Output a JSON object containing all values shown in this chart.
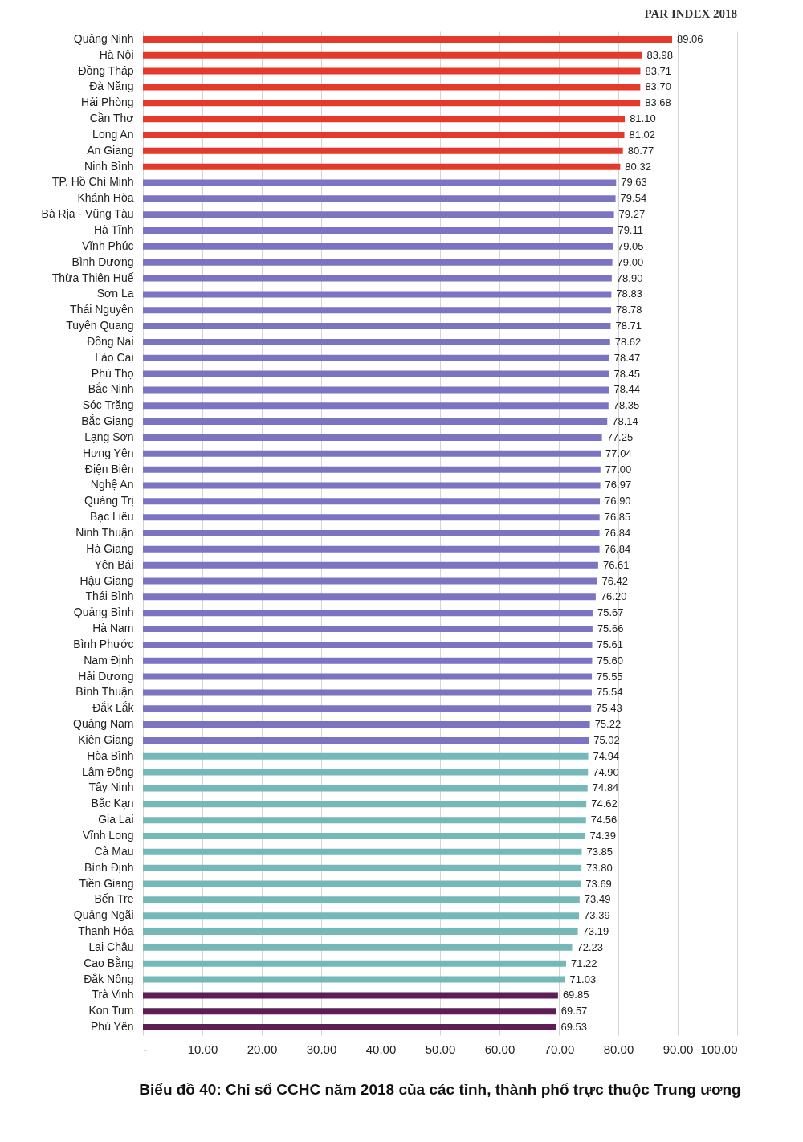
{
  "chart_data": {
    "type": "bar",
    "orientation": "horizontal",
    "title": "Biểu đồ 40: Chỉ số CCHC năm 2018 của các tỉnh, thành phố trực thuộc Trung ương",
    "annotations": [
      "PAR INDEX 2018"
    ],
    "categories": [
      "Quảng Ninh",
      "Hà Nội",
      "Đồng Tháp",
      "Đà Nẵng",
      "Hải Phòng",
      "Cần Thơ",
      "Long An",
      "An Giang",
      "Ninh Bình",
      "TP. Hồ Chí Minh",
      "Khánh Hòa",
      "Bà Rịa - Vũng Tàu",
      "Hà Tĩnh",
      "Vĩnh Phúc",
      "Bình Dương",
      "Thừa Thiên Huế",
      "Sơn La",
      "Thái Nguyên",
      "Tuyên Quang",
      "Đồng Nai",
      "Lào Cai",
      "Phú Thọ",
      "Bắc Ninh",
      "Sóc Trăng",
      "Bắc Giang",
      "Lạng Sơn",
      "Hưng Yên",
      "Điện Biên",
      "Nghệ An",
      "Quảng Trị",
      "Bạc Liêu",
      "Ninh Thuận",
      "Hà Giang",
      "Yên Bái",
      "Hậu Giang",
      "Thái Bình",
      "Quảng Bình",
      "Hà Nam",
      "Bình Phước",
      "Nam Định",
      "Hải Dương",
      "Bình Thuận",
      "Đắk Lắk",
      "Quảng Nam",
      "Kiên Giang",
      "Hòa Bình",
      "Lâm Đồng",
      "Tây Ninh",
      "Bắc Kạn",
      "Gia Lai",
      "Vĩnh Long",
      "Cà Mau",
      "Bình Định",
      "Tiền Giang",
      "Bến Tre",
      "Quảng Ngãi",
      "Thanh Hóa",
      "Lai Châu",
      "Cao Bằng",
      "Đắk Nông",
      "Trà Vinh",
      "Kon Tum",
      "Phú Yên"
    ],
    "values": [
      89.06,
      83.98,
      83.71,
      83.7,
      83.68,
      81.1,
      81.02,
      80.77,
      80.32,
      79.63,
      79.54,
      79.27,
      79.11,
      79.05,
      79.0,
      78.9,
      78.83,
      78.78,
      78.71,
      78.62,
      78.47,
      78.45,
      78.44,
      78.35,
      78.14,
      77.25,
      77.04,
      77.0,
      76.97,
      76.9,
      76.85,
      76.84,
      76.84,
      76.61,
      76.42,
      76.2,
      75.67,
      75.66,
      75.61,
      75.6,
      75.55,
      75.54,
      75.43,
      75.22,
      75.02,
      74.94,
      74.9,
      74.84,
      74.62,
      74.56,
      74.39,
      73.85,
      73.8,
      73.69,
      73.49,
      73.39,
      73.19,
      72.23,
      71.22,
      71.03,
      69.85,
      69.57,
      69.53
    ],
    "value_labels": [
      "89.06",
      "83.98",
      "83.71",
      "83.70",
      "83.68",
      "81.10",
      "81.02",
      "80.77",
      "80.32",
      "79.63",
      "79.54",
      "79.27",
      "79.11",
      "79.05",
      "79.00",
      "78.90",
      "78.83",
      "78.78",
      "78.71",
      "78.62",
      "78.47",
      "78.45",
      "78.44",
      "78.35",
      "78.14",
      "77.25",
      "77.04",
      "77.00",
      "76.97",
      "76.90",
      "76.85",
      "76.84",
      "76.84",
      "76.61",
      "76.42",
      "76.20",
      "75.67",
      "75.66",
      "75.61",
      "75.60",
      "75.55",
      "75.54",
      "75.43",
      "75.22",
      "75.02",
      "74.94",
      "74.90",
      "74.84",
      "74.62",
      "74.56",
      "74.39",
      "73.85",
      "73.80",
      "73.69",
      "73.49",
      "73.39",
      "73.19",
      "72.23",
      "71.22",
      "71.03",
      "69.85",
      "69.57",
      "69.53"
    ],
    "colors": [
      "#e53a2b",
      "#e53a2b",
      "#e53a2b",
      "#e53a2b",
      "#e53a2b",
      "#e53a2b",
      "#e53a2b",
      "#e53a2b",
      "#e53a2b",
      "#7a74c2",
      "#7a74c2",
      "#7a74c2",
      "#7a74c2",
      "#7a74c2",
      "#7a74c2",
      "#7a74c2",
      "#7a74c2",
      "#7a74c2",
      "#7a74c2",
      "#7a74c2",
      "#7a74c2",
      "#7a74c2",
      "#7a74c2",
      "#7a74c2",
      "#7a74c2",
      "#7a74c2",
      "#7a74c2",
      "#7a74c2",
      "#7a74c2",
      "#7a74c2",
      "#7a74c2",
      "#7a74c2",
      "#7a74c2",
      "#7a74c2",
      "#7a74c2",
      "#7a74c2",
      "#7a74c2",
      "#7a74c2",
      "#7a74c2",
      "#7a74c2",
      "#7a74c2",
      "#7a74c2",
      "#7a74c2",
      "#7a74c2",
      "#7a74c2",
      "#74b8b8",
      "#74b8b8",
      "#74b8b8",
      "#74b8b8",
      "#74b8b8",
      "#74b8b8",
      "#74b8b8",
      "#74b8b8",
      "#74b8b8",
      "#74b8b8",
      "#74b8b8",
      "#74b8b8",
      "#74b8b8",
      "#74b8b8",
      "#74b8b8",
      "#5c1e55",
      "#5c1e55",
      "#5c1e55"
    ],
    "xlim": [
      0,
      100
    ],
    "xticks": [
      {
        "value": 0,
        "label": "-"
      },
      {
        "value": 10,
        "label": "10.00"
      },
      {
        "value": 20,
        "label": "20.00"
      },
      {
        "value": 30,
        "label": "30.00"
      },
      {
        "value": 40,
        "label": "40.00"
      },
      {
        "value": 50,
        "label": "50.00"
      },
      {
        "value": 60,
        "label": "60.00"
      },
      {
        "value": 70,
        "label": "70.00"
      },
      {
        "value": 80,
        "label": "80.00"
      },
      {
        "value": 90,
        "label": "90.00"
      },
      {
        "value": 100,
        "label": "100.00"
      }
    ],
    "grid": "x"
  }
}
